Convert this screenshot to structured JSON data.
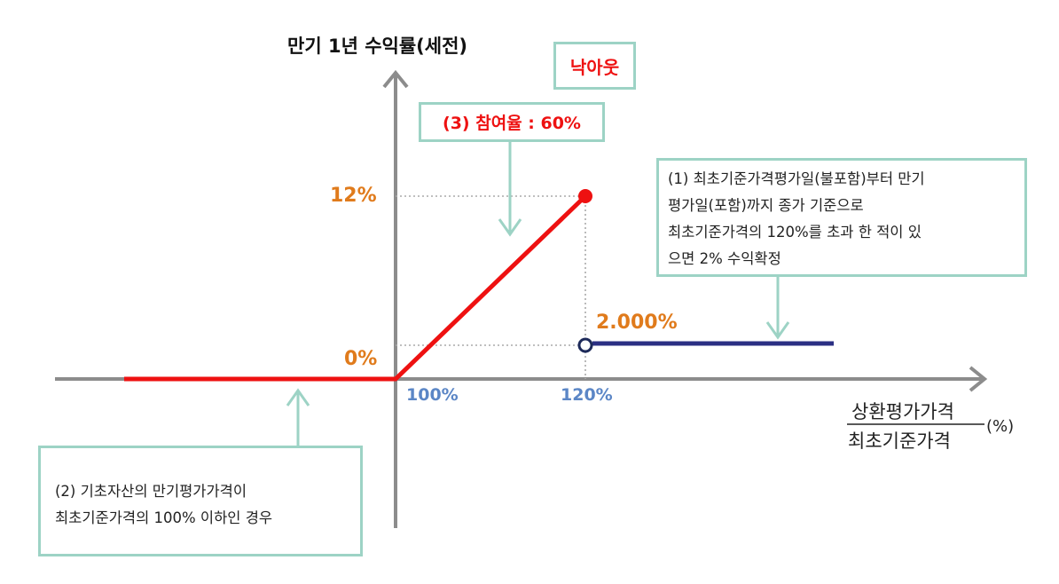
{
  "y_axis_title": "만기 1년 수익률(세전)",
  "knockout_label": "낙아웃",
  "participation_label": "(3) 참여율 : 60%",
  "note1_lines": [
    "(1) 최초기준가격평가일(불포함)부터 만기",
    "평가일(포함)까지 종가 기준으로",
    "최초기준가격의 120%를 초과 한 적이 있",
    "으면 2% 수익확정"
  ],
  "note2_lines": [
    "(2) 기초자산의 만기평가가격이",
    "최초기준가격의 100% 이하인 경우"
  ],
  "y_ticks": [
    "12%",
    "0%"
  ],
  "fixed_return_label": "2.000%",
  "x_ticks": [
    "100%",
    "120%"
  ],
  "x_axis_numerator": "상환평가가격",
  "x_axis_denominator": "최초기준가격",
  "x_axis_unit": "(%)",
  "colors": {
    "payoff_line": "#ee1111",
    "fixed_line": "#2b2f83",
    "axis": "#8c8c8c",
    "box_border": "#9dd3c5",
    "arrow": "#9dd3c5",
    "tick_orange": "#e07b1c",
    "tick_blue": "#5b86c6"
  },
  "chart_data": {
    "type": "line",
    "xlabel": "상환평가가격 / 최초기준가격 (%)",
    "ylabel": "만기 1년 수익률(세전)",
    "series": [
      {
        "values": [
          [
            75,
            0
          ],
          [
            100,
            0
          ],
          [
            120,
            12
          ]
        ]
      },
      {
        "values": [
          [
            120,
            2
          ],
          [
            140,
            2
          ]
        ]
      }
    ]
  }
}
